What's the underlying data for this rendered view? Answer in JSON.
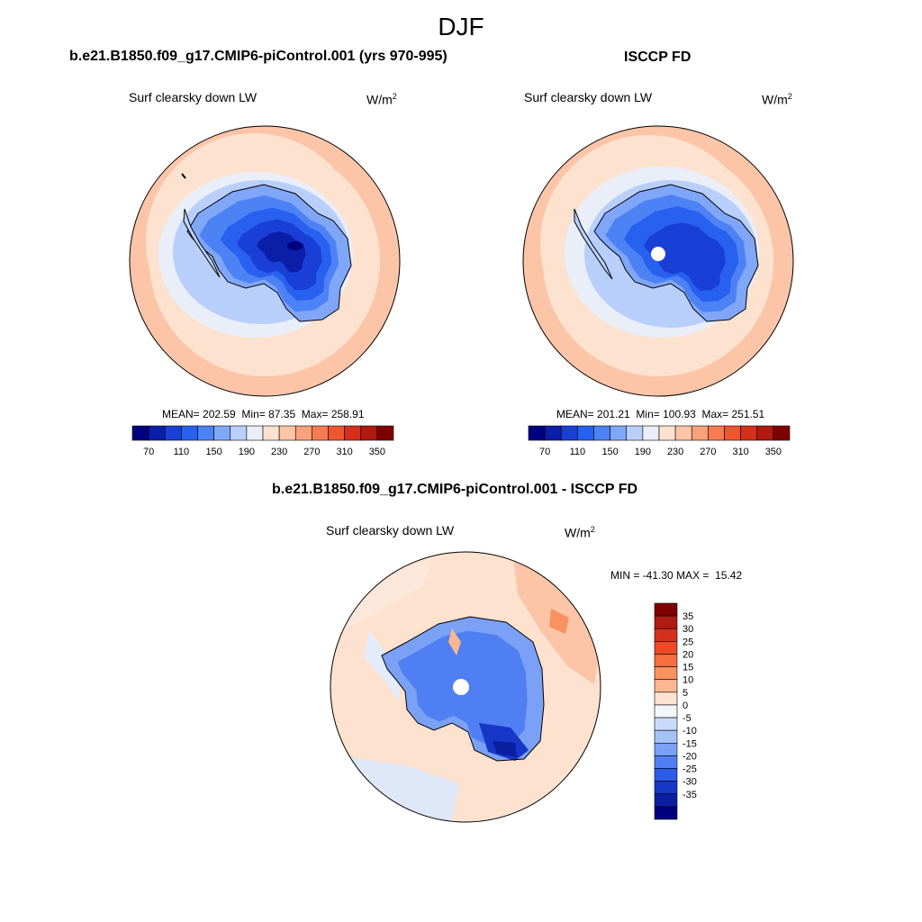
{
  "season": "DJF",
  "panels": {
    "model": {
      "title": "b.e21.B1850.f09_g17.CMIP6-piControl.001 (yrs 970-995)",
      "field": "Surf clearsky down LW",
      "units": "W/m",
      "units_sup": "2",
      "stats": {
        "mean_label": "MEAN=",
        "mean": "202.59",
        "min_label": "Min=",
        "min": "87.35",
        "max_label": "Max=",
        "max": "258.91"
      }
    },
    "obs": {
      "title": "ISCCP FD",
      "field": "Surf clearsky down LW",
      "units": "W/m",
      "units_sup": "2",
      "stats": {
        "mean_label": "MEAN=",
        "mean": "201.21",
        "min_label": "Min=",
        "min": "100.93",
        "max_label": "Max=",
        "max": "251.51"
      }
    },
    "diff": {
      "title": "b.e21.B1850.f09_g17.CMIP6-piControl.001 - ISCCP FD",
      "field": "Surf clearsky down LW",
      "units": "W/m",
      "units_sup": "2",
      "stats": {
        "min_label": "MIN =",
        "min": "-41.30",
        "max_label": "MAX =",
        "max": "15.42"
      }
    }
  },
  "colorbar_abs": {
    "colors": [
      "#00007f",
      "#0a1ea8",
      "#1a3fd6",
      "#2860f0",
      "#4d82f5",
      "#80a6f8",
      "#b9cffb",
      "#e9eef9",
      "#fde2d0",
      "#fcc5a8",
      "#f9a07c",
      "#f77a52",
      "#ef5630",
      "#d5301b",
      "#b01a10",
      "#7f0000"
    ],
    "labels": [
      "70",
      "110",
      "150",
      "190",
      "230",
      "270",
      "310",
      "350"
    ]
  },
  "colorbar_diff": {
    "colors_top_to_bottom": [
      "#7f0000",
      "#b01a10",
      "#d5301b",
      "#ef4a25",
      "#f76e3f",
      "#f9925f",
      "#fbb790",
      "#fde2d0",
      "#f3f6fb",
      "#c9dbf9",
      "#a5c2f8",
      "#7aa1f5",
      "#4f7ff2",
      "#2b5cec",
      "#1637c8",
      "#0a1ea0",
      "#00007f"
    ],
    "labels": [
      "35",
      "30",
      "25",
      "20",
      "15",
      "10",
      "5",
      "0",
      "-5",
      "-10",
      "-15",
      "-20",
      "-25",
      "-30",
      "-35"
    ]
  }
}
